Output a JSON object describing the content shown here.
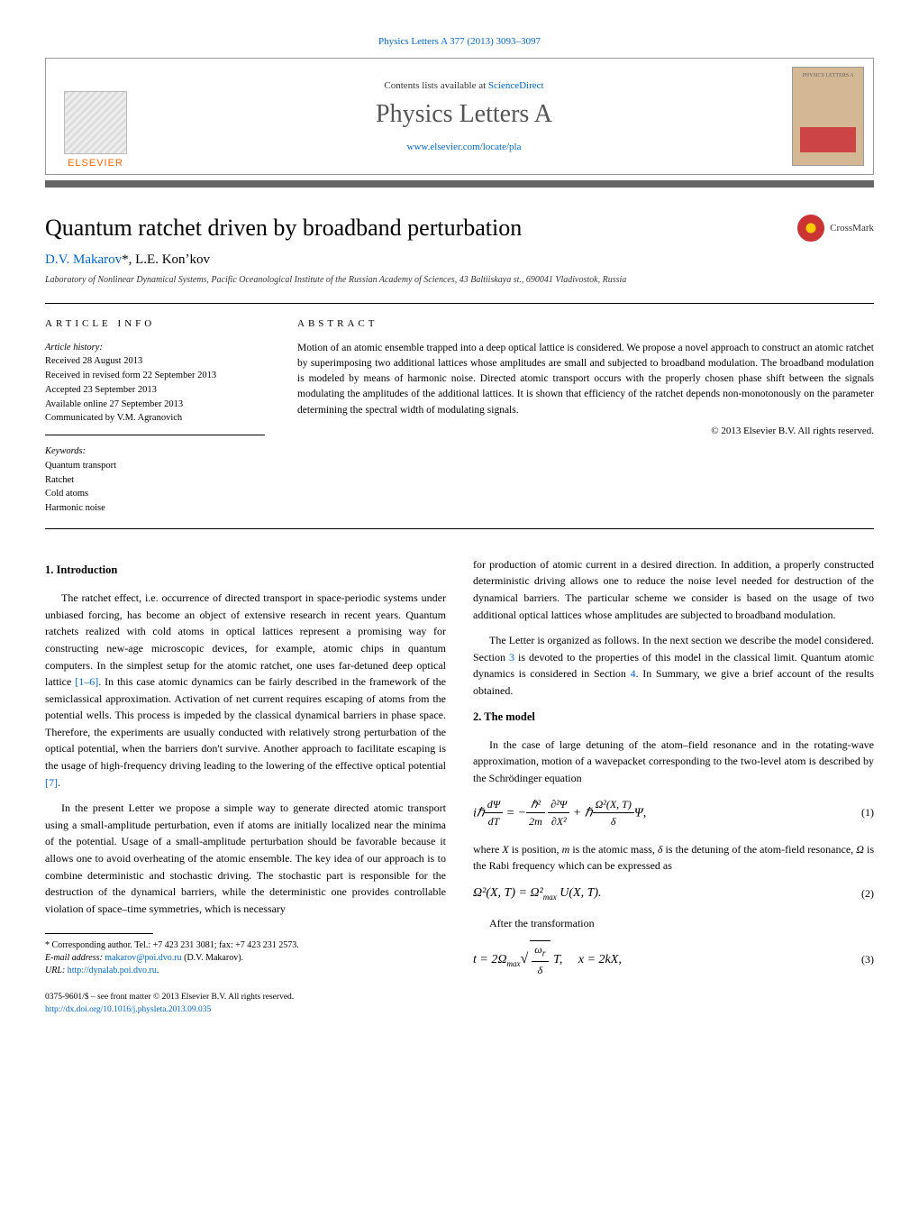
{
  "header": {
    "citation": "Physics Letters A 377 (2013) 3093–3097",
    "contents_prefix": "Contents lists available at ",
    "contents_link": "ScienceDirect",
    "journal_name": "Physics Letters A",
    "journal_url": "www.elsevier.com/locate/pla",
    "publisher": "ELSEVIER",
    "cover_label": "PHYSICS LETTERS A"
  },
  "article": {
    "title": "Quantum ratchet driven by broadband perturbation",
    "crossmark": "CrossMark",
    "authors_html": "D.V. Makarov *, L.E. Konʼkov",
    "author1": "D.V. Makarov",
    "author_sep": "*, ",
    "author2": "L.E. Konʼkov",
    "affiliation": "Laboratory of Nonlinear Dynamical Systems, Pacific Oceanological Institute of the Russian Academy of Sciences, 43 Baltiiskaya st., 690041 Vladivostok, Russia"
  },
  "info": {
    "heading": "ARTICLE INFO",
    "history_label": "Article history:",
    "received": "Received 28 August 2013",
    "revised": "Received in revised form 22 September 2013",
    "accepted": "Accepted 23 September 2013",
    "online": "Available online 27 September 2013",
    "communicated": "Communicated by V.M. Agranovich",
    "keywords_label": "Keywords:",
    "kw1": "Quantum transport",
    "kw2": "Ratchet",
    "kw3": "Cold atoms",
    "kw4": "Harmonic noise"
  },
  "abstract": {
    "heading": "ABSTRACT",
    "text": "Motion of an atomic ensemble trapped into a deep optical lattice is considered. We propose a novel approach to construct an atomic ratchet by superimposing two additional lattices whose amplitudes are small and subjected to broadband modulation. The broadband modulation is modeled by means of harmonic noise. Directed atomic transport occurs with the properly chosen phase shift between the signals modulating the amplitudes of the additional lattices. It is shown that efficiency of the ratchet depends non-monotonously on the parameter determining the spectral width of modulating signals.",
    "copyright": "© 2013 Elsevier B.V. All rights reserved."
  },
  "sections": {
    "intro_heading": "1. Introduction",
    "intro_p1a": "The ratchet effect, i.e. occurrence of directed transport in space-periodic systems under unbiased forcing, has become an object of extensive research in recent years. Quantum ratchets realized with cold atoms in optical lattices represent a promising way for constructing new-age microscopic devices, for example, atomic chips in quantum computers. In the simplest setup for the atomic ratchet, one uses far-detuned deep optical lattice ",
    "intro_ref1": "[1–6]",
    "intro_p1b": ". In this case atomic dynamics can be fairly described in the framework of the semiclassical approximation. Activation of net current requires escaping of atoms from the potential wells. This process is impeded by the classical dynamical barriers in phase space. Therefore, the experiments are usually conducted with relatively strong perturbation of the optical potential, when the barriers don't survive. Another approach to facilitate escaping is the usage of high-frequency driving leading to the lowering of the effective optical potential ",
    "intro_ref2": "[7]",
    "intro_p1c": ".",
    "intro_p2": "In the present Letter we propose a simple way to generate directed atomic transport using a small-amplitude perturbation, even if atoms are initially localized near the minima of the potential. Usage of a small-amplitude perturbation should be favorable because it allows one to avoid overheating of the atomic ensemble. The key idea of our approach is to combine deterministic and stochastic driving. The stochastic part is responsible for the destruction of the dynamical barriers, while the deterministic one provides controllable violation of space–time symmetries, which is necessary",
    "col2_p1": "for production of atomic current in a desired direction. In addition, a properly constructed deterministic driving allows one to reduce the noise level needed for destruction of the dynamical barriers. The particular scheme we consider is based on the usage of two additional optical lattices whose amplitudes are subjected to broadband modulation.",
    "col2_p2a": "The Letter is organized as follows. In the next section we describe the model considered. Section ",
    "col2_ref3": "3",
    "col2_p2b": " is devoted to the properties of this model in the classical limit. Quantum atomic dynamics is considered in Section ",
    "col2_ref4": "4",
    "col2_p2c": ". In Summary, we give a brief account of the results obtained.",
    "model_heading": "2. The model",
    "model_p1": "In the case of large detuning of the atom–field resonance and in the rotating-wave approximation, motion of a wavepacket corresponding to the two-level atom is described by the Schrödinger equation",
    "model_p2a": "where ",
    "model_p2_X": "X",
    "model_p2b": " is position, ",
    "model_p2_m": "m",
    "model_p2c": " is the atomic mass, ",
    "model_p2_delta": "δ",
    "model_p2d": " is the detuning of the atom-field resonance, ",
    "model_p2_Omega": "Ω",
    "model_p2e": " is the Rabi frequency which can be expressed as",
    "model_p3": "After the transformation"
  },
  "equations": {
    "eq1": "iℏ dΨ/dT = −(ℏ²/2m) ∂²Ψ/∂X² + ℏ (Ω²(X,T)/δ) Ψ,",
    "eq1_num": "(1)",
    "eq2": "Ω²(X, T) = Ω²ₘₐₓ U(X, T).",
    "eq2_num": "(2)",
    "eq3": "t = 2Ωₘₐₓ √(ωr/δ) T,   x = 2kX,",
    "eq3_num": "(3)"
  },
  "footnote": {
    "corr": "* Corresponding author. Tel.: +7 423 231 3081; fax: +7 423 231 2573.",
    "email_label": "E-mail address: ",
    "email": "makarov@poi.dvo.ru",
    "email_name": " (D.V. Makarov).",
    "url_label": "URL: ",
    "url": "http://dynalab.poi.dvo.ru"
  },
  "bottom": {
    "issn": "0375-9601/$ – see front matter © 2013 Elsevier B.V. All rights reserved.",
    "doi": "http://dx.doi.org/10.1016/j.physleta.2013.09.035"
  },
  "colors": {
    "link": "#0066cc",
    "elsevier_orange": "#ff6600",
    "divider": "#666666",
    "cover_bg": "#d4b896",
    "cover_accent": "#cc4444"
  }
}
